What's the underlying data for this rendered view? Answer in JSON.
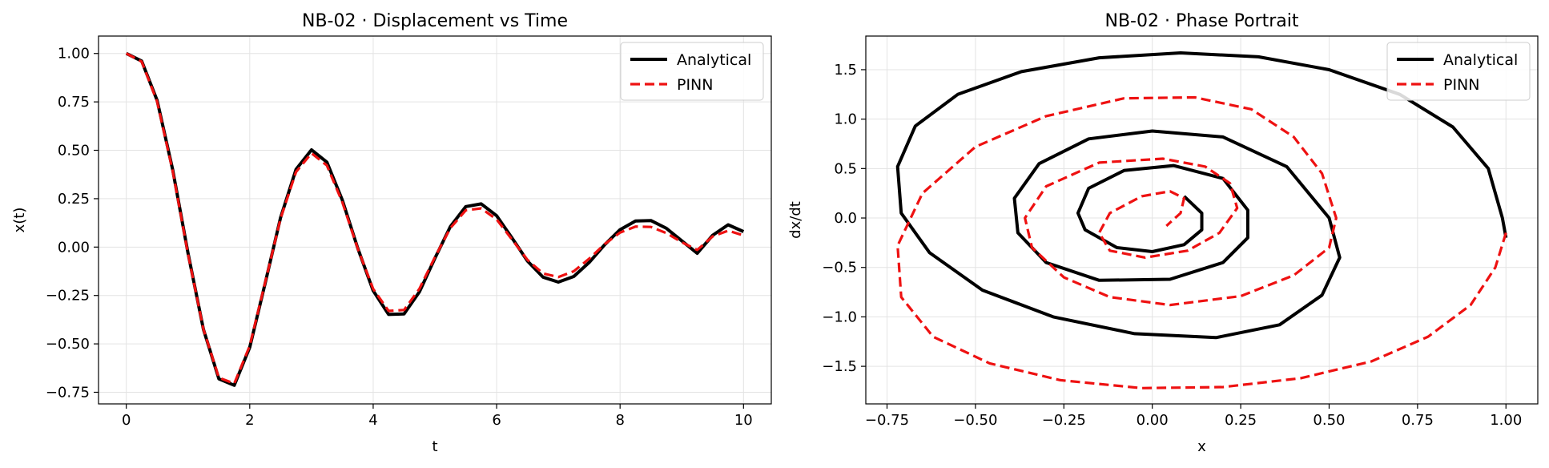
{
  "figure": {
    "background": "#ffffff"
  },
  "chart_data": [
    {
      "type": "line",
      "title": "NB-02 · Displacement vs Time",
      "xlabel": "t",
      "ylabel": "x(t)",
      "xlim": [
        -0.45,
        10.45
      ],
      "ylim": [
        -0.81,
        1.09
      ],
      "xticks": [
        0,
        2,
        4,
        6,
        8,
        10
      ],
      "xtick_labels": [
        "0",
        "2",
        "4",
        "6",
        "8",
        "10"
      ],
      "yticks": [
        1.0,
        0.75,
        0.5,
        0.25,
        0.0,
        -0.25,
        -0.5,
        -0.75
      ],
      "ytick_labels": [
        "1.00",
        "0.75",
        "0.50",
        "0.25",
        "0.00",
        "−0.25",
        "−0.50",
        "−0.75"
      ],
      "grid": true,
      "legend_position": "top-right",
      "series": [
        {
          "name": "Analytical",
          "color": "#000000",
          "style": "solid",
          "x": [
            0,
            0.25,
            0.5,
            0.75,
            1.0,
            1.25,
            1.5,
            1.75,
            2.0,
            2.25,
            2.5,
            2.75,
            3.0,
            3.25,
            3.5,
            3.75,
            4.0,
            4.25,
            4.5,
            4.75,
            5.0,
            5.25,
            5.5,
            5.75,
            6.0,
            6.25,
            6.5,
            6.75,
            7.0,
            7.25,
            7.5,
            7.75,
            8.0,
            8.25,
            8.5,
            8.75,
            9.0,
            9.25,
            9.5,
            9.75,
            10.0
          ],
          "y": [
            1.0,
            0.961,
            0.757,
            0.402,
            -0.03,
            -0.425,
            -0.681,
            -0.714,
            -0.518,
            -0.186,
            0.152,
            0.401,
            0.502,
            0.439,
            0.243,
            -0.006,
            -0.225,
            -0.348,
            -0.345,
            -0.231,
            -0.058,
            0.106,
            0.209,
            0.223,
            0.162,
            0.047,
            -0.072,
            -0.155,
            -0.181,
            -0.152,
            -0.079,
            0.012,
            0.09,
            0.135,
            0.137,
            0.097,
            0.032,
            -0.032,
            0.061,
            0.115,
            0.08
          ]
        },
        {
          "name": "PINN",
          "color": "#ee1111",
          "style": "dashed",
          "x": [
            0,
            0.25,
            0.5,
            0.75,
            1.0,
            1.25,
            1.5,
            1.75,
            2.0,
            2.25,
            2.5,
            2.75,
            3.0,
            3.25,
            3.5,
            3.75,
            4.0,
            4.25,
            4.5,
            4.75,
            5.0,
            5.25,
            5.5,
            5.75,
            6.0,
            6.25,
            6.5,
            6.75,
            7.0,
            7.25,
            7.5,
            7.75,
            8.0,
            8.25,
            8.5,
            8.75,
            9.0,
            9.25,
            9.5,
            9.75,
            10.0
          ],
          "y": [
            1.0,
            0.958,
            0.751,
            0.395,
            -0.035,
            -0.425,
            -0.675,
            -0.705,
            -0.51,
            -0.182,
            0.148,
            0.388,
            0.485,
            0.422,
            0.232,
            -0.008,
            -0.216,
            -0.33,
            -0.325,
            -0.215,
            -0.052,
            0.098,
            0.19,
            0.2,
            0.143,
            0.039,
            -0.066,
            -0.136,
            -0.155,
            -0.125,
            -0.06,
            0.015,
            0.075,
            0.106,
            0.104,
            0.072,
            0.025,
            -0.015,
            0.055,
            0.085,
            0.06
          ]
        }
      ]
    },
    {
      "type": "line",
      "title": "NB-02 · Phase Portrait",
      "xlabel": "x",
      "ylabel": "dx/dt",
      "xlim": [
        -0.81,
        1.09
      ],
      "ylim": [
        -1.88,
        1.84
      ],
      "xticks": [
        -0.75,
        -0.5,
        -0.25,
        0.0,
        0.25,
        0.5,
        0.75,
        1.0
      ],
      "xtick_labels": [
        "−0.75",
        "−0.50",
        "−0.25",
        "0.00",
        "0.25",
        "0.50",
        "0.75",
        "1.00"
      ],
      "yticks": [
        1.5,
        1.0,
        0.5,
        0.0,
        -0.5,
        -1.0,
        -1.5
      ],
      "ytick_labels": [
        "1.5",
        "1.0",
        "0.5",
        "0.0",
        "−0.5",
        "−1.0",
        "−1.5"
      ],
      "grid": true,
      "legend_position": "top-right",
      "series": [
        {
          "name": "Analytical",
          "color": "#000000",
          "style": "solid",
          "x": [
            1.0,
            0.99,
            0.95,
            0.85,
            0.7,
            0.5,
            0.3,
            0.08,
            -0.15,
            -0.37,
            -0.55,
            -0.67,
            -0.72,
            -0.71,
            -0.63,
            -0.48,
            -0.28,
            -0.05,
            0.18,
            0.36,
            0.48,
            0.53,
            0.5,
            0.38,
            0.2,
            0.0,
            -0.18,
            -0.32,
            -0.39,
            -0.38,
            -0.3,
            -0.15,
            0.05,
            0.2,
            0.27,
            0.27,
            0.2,
            0.06,
            -0.08,
            -0.18,
            -0.21,
            -0.19,
            -0.1,
            0.0,
            0.09,
            0.14,
            0.14,
            0.09
          ],
          "y": [
            -0.2,
            0.0,
            0.5,
            0.92,
            1.25,
            1.5,
            1.63,
            1.67,
            1.62,
            1.48,
            1.25,
            0.93,
            0.52,
            0.05,
            -0.35,
            -0.73,
            -1.0,
            -1.17,
            -1.21,
            -1.08,
            -0.78,
            -0.4,
            0.0,
            0.52,
            0.82,
            0.88,
            0.8,
            0.55,
            0.2,
            -0.15,
            -0.45,
            -0.63,
            -0.62,
            -0.45,
            -0.2,
            0.08,
            0.4,
            0.53,
            0.48,
            0.3,
            0.05,
            -0.12,
            -0.3,
            -0.34,
            -0.27,
            -0.12,
            0.05,
            0.22
          ]
        },
        {
          "name": "PINN",
          "color": "#ee1111",
          "style": "dashed",
          "x": [
            1.0,
            0.97,
            0.9,
            0.78,
            0.62,
            0.42,
            0.2,
            -0.03,
            -0.26,
            -0.46,
            -0.62,
            -0.71,
            -0.72,
            -0.65,
            -0.5,
            -0.3,
            -0.08,
            0.12,
            0.28,
            0.4,
            0.48,
            0.52,
            0.5,
            0.4,
            0.25,
            0.05,
            -0.12,
            -0.25,
            -0.34,
            -0.36,
            -0.3,
            -0.15,
            0.03,
            0.15,
            0.22,
            0.24,
            0.19,
            0.1,
            -0.02,
            -0.12,
            -0.15,
            -0.12,
            -0.03,
            0.05,
            0.09,
            0.08,
            0.04
          ],
          "y": [
            -0.15,
            -0.5,
            -0.88,
            -1.2,
            -1.45,
            -1.62,
            -1.71,
            -1.72,
            -1.64,
            -1.47,
            -1.2,
            -0.8,
            -0.28,
            0.25,
            0.72,
            1.03,
            1.21,
            1.22,
            1.1,
            0.82,
            0.45,
            0.0,
            -0.3,
            -0.58,
            -0.79,
            -0.88,
            -0.8,
            -0.6,
            -0.3,
            0.0,
            0.32,
            0.56,
            0.6,
            0.52,
            0.35,
            0.1,
            -0.15,
            -0.33,
            -0.4,
            -0.33,
            -0.15,
            0.05,
            0.22,
            0.27,
            0.2,
            0.05,
            -0.08
          ]
        }
      ]
    }
  ]
}
